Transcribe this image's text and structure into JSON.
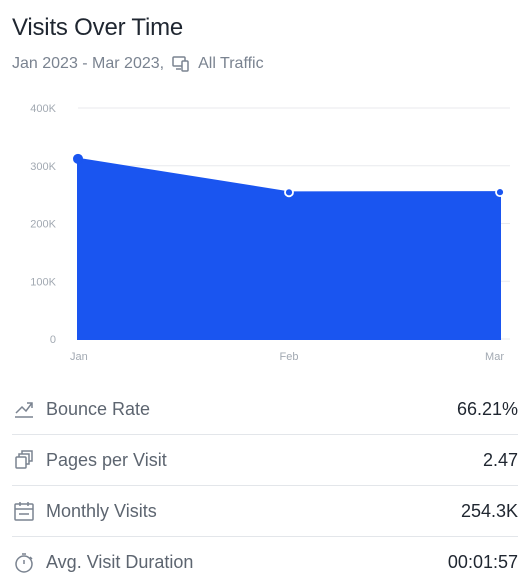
{
  "header": {
    "title": "Visits Over Time",
    "date_range": "Jan 2023 - Mar 2023,",
    "traffic_label": "All Traffic",
    "traffic_icon": "devices-icon"
  },
  "colors": {
    "area_fill": "#1a55f0",
    "line": "#1a55f0",
    "point_stroke": "#ffffff",
    "grid": "#e8eaee"
  },
  "chart_data": {
    "type": "area",
    "title": "",
    "xlabel": "",
    "ylabel": "",
    "categories": [
      "Jan",
      "Feb",
      "Mar"
    ],
    "series": [
      {
        "values": [
          312000,
          254000,
          254300
        ]
      }
    ],
    "yticks": [
      "0",
      "100K",
      "200K",
      "300K",
      "400K"
    ],
    "ylim": [
      0,
      400000
    ],
    "grid": true,
    "legend": "none"
  },
  "metrics": [
    {
      "icon": "trend-arrow-icon",
      "label": "Bounce Rate",
      "value": "66.21%"
    },
    {
      "icon": "pages-stack-icon",
      "label": "Pages per Visit",
      "value": "2.47"
    },
    {
      "icon": "calendar-icon",
      "label": "Monthly Visits",
      "value": "254.3K"
    },
    {
      "icon": "stopwatch-icon",
      "label": "Avg. Visit Duration",
      "value": "00:01:57"
    }
  ]
}
